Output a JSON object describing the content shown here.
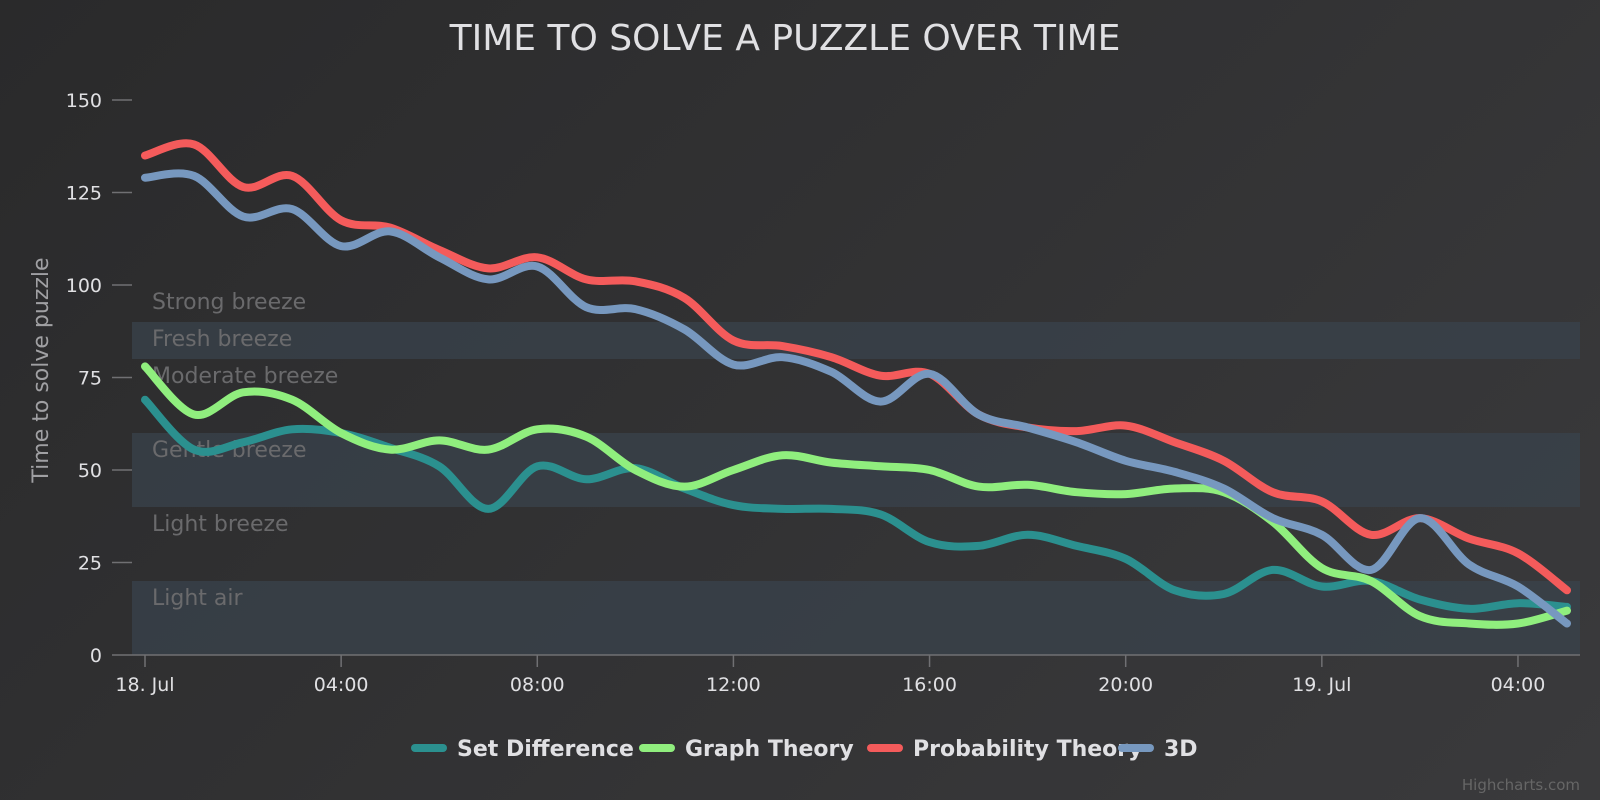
{
  "chart_data": {
    "type": "line",
    "title": "TIME TO SOLVE A PUZZLE OVER TIME",
    "ylabel": "Time to solve puzzle",
    "xlabel": "",
    "ylim": [
      0,
      150
    ],
    "yticks": [
      0,
      25,
      50,
      75,
      100,
      125,
      150
    ],
    "xlim": [
      "2009-07-18 00:00",
      "2009-07-19 05:00"
    ],
    "xticks": [
      {
        "label": "18. Jul",
        "value": "2009-07-18 00:00"
      },
      {
        "label": "04:00",
        "value": "2009-07-18 04:00"
      },
      {
        "label": "08:00",
        "value": "2009-07-18 08:00"
      },
      {
        "label": "12:00",
        "value": "2009-07-18 12:00"
      },
      {
        "label": "16:00",
        "value": "2009-07-18 16:00"
      },
      {
        "label": "20:00",
        "value": "2009-07-18 20:00"
      },
      {
        "label": "19. Jul",
        "value": "2009-07-19 00:00"
      },
      {
        "label": "04:00",
        "value": "2009-07-19 04:00"
      }
    ],
    "x": [
      "2009-07-18 00:00",
      "2009-07-18 01:00",
      "2009-07-18 02:00",
      "2009-07-18 03:00",
      "2009-07-18 04:00",
      "2009-07-18 05:00",
      "2009-07-18 06:00",
      "2009-07-18 07:00",
      "2009-07-18 08:00",
      "2009-07-18 09:00",
      "2009-07-18 10:00",
      "2009-07-18 11:00",
      "2009-07-18 12:00",
      "2009-07-18 13:00",
      "2009-07-18 14:00",
      "2009-07-18 15:00",
      "2009-07-18 16:00",
      "2009-07-18 17:00",
      "2009-07-18 18:00",
      "2009-07-18 19:00",
      "2009-07-18 20:00",
      "2009-07-18 21:00",
      "2009-07-18 22:00",
      "2009-07-18 23:00",
      "2009-07-19 00:00",
      "2009-07-19 01:00",
      "2009-07-19 02:00",
      "2009-07-19 03:00",
      "2009-07-19 04:00",
      "2009-07-19 05:00"
    ],
    "series": [
      {
        "name": "Set Difference",
        "color": "#2b908f",
        "values": [
          69,
          55.5,
          57.5,
          61,
          60,
          56,
          51,
          39.5,
          51,
          47.5,
          50.5,
          45,
          40.5,
          39.5,
          39.5,
          38,
          30.5,
          29.5,
          32.5,
          29.5,
          26,
          17.5,
          16.5,
          23,
          18.5,
          20,
          15,
          12.5,
          14,
          13
        ]
      },
      {
        "name": "Graph Theory",
        "color": "#90ee7e",
        "values": [
          78,
          65,
          71,
          69,
          60,
          55.5,
          58,
          55.5,
          61,
          59,
          50,
          45.5,
          50,
          54,
          52,
          51,
          50,
          45.5,
          46,
          44,
          43.5,
          45,
          44,
          36,
          23.5,
          20,
          10.5,
          8.5,
          8.5,
          12
        ]
      },
      {
        "name": "Probability Theory",
        "color": "#f45b5b",
        "values": [
          135,
          138,
          126.5,
          129.5,
          117.5,
          115.5,
          109.5,
          104.5,
          107.5,
          101.5,
          101,
          96.5,
          85,
          83.5,
          80.5,
          75.5,
          76,
          65,
          61.5,
          60.5,
          62,
          57.5,
          52.5,
          44,
          41.5,
          32.5,
          37,
          31.5,
          27.5,
          17.5
        ]
      },
      {
        "name": "3D",
        "color": "#7798bf",
        "values": [
          129,
          129.5,
          118.5,
          120.5,
          110.5,
          114.5,
          107.5,
          101.5,
          105,
          94,
          93.5,
          88,
          78.5,
          80.5,
          76.5,
          68.5,
          76,
          65,
          61.5,
          57.5,
          52.5,
          49.5,
          45,
          37,
          32.5,
          23,
          37,
          24.5,
          18.5,
          8.5
        ]
      }
    ],
    "plot_bands": [
      {
        "from": 0,
        "to": 20,
        "label": "Light air",
        "color": "#3a434c"
      },
      {
        "from": 20,
        "to": 40,
        "label": "Light breeze",
        "color": ""
      },
      {
        "from": 40,
        "to": 60,
        "label": "Gentle breeze",
        "color": "#3a434c"
      },
      {
        "from": 60,
        "to": 80,
        "label": "Moderate breeze",
        "color": ""
      },
      {
        "from": 80,
        "to": 90,
        "label": "Fresh breeze",
        "color": "#3a434c"
      },
      {
        "from": 90,
        "to": 100,
        "label": "Strong breeze",
        "color": ""
      }
    ],
    "legend_position": "bottom-center",
    "grid": false,
    "credits": "Highcharts.com"
  }
}
